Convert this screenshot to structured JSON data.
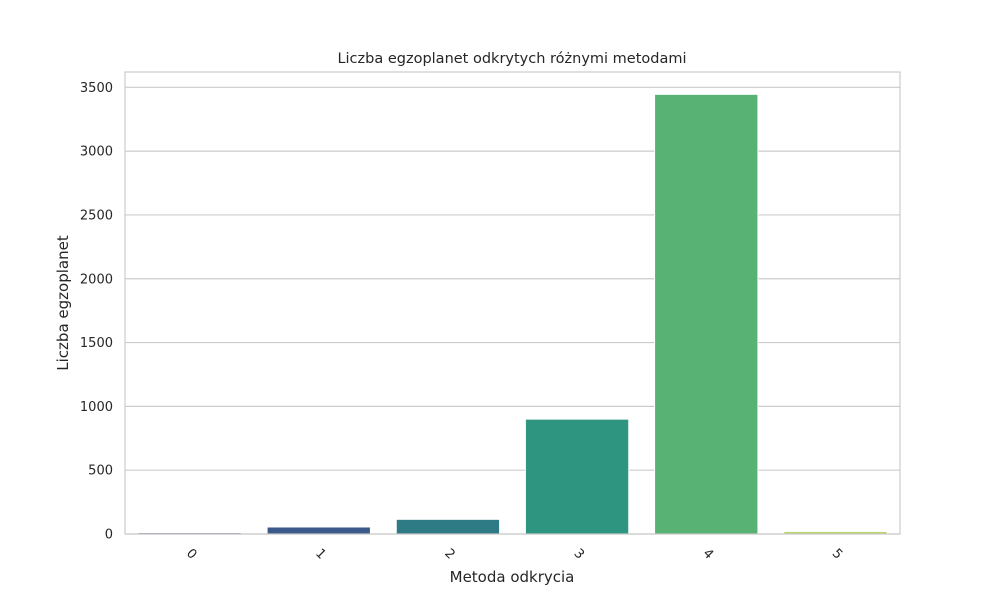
{
  "chart_data": {
    "type": "bar",
    "title": "Liczba egzoplanet odkrytych różnymi metodami",
    "xlabel": "Metoda odkrycia",
    "ylabel": "Liczba egzoplanet",
    "categories": [
      "0",
      "1",
      "2",
      "3",
      "4",
      "5"
    ],
    "values": [
      10,
      55,
      115,
      900,
      3445,
      20
    ],
    "ylim": [
      0,
      3620
    ],
    "yticks": [
      0,
      500,
      1000,
      1500,
      2000,
      2500,
      3000,
      3500
    ],
    "x_tick_rotation_deg": 45,
    "grid": "horizontal",
    "legend": "none",
    "colors": [
      "#3f2a6b",
      "#3b5a8a",
      "#2e7a85",
      "#2e9580",
      "#57b273",
      "#b8d36a"
    ],
    "background": "#ffffff",
    "grid_color": "#cccccc",
    "frame_color": "#cccccc"
  }
}
